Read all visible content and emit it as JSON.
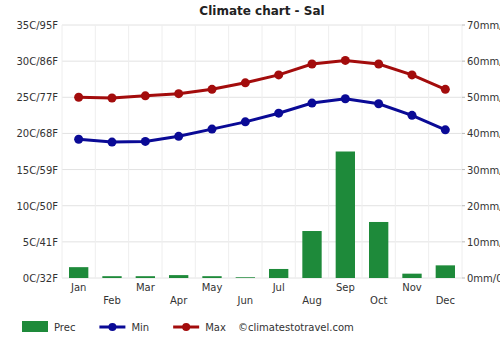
{
  "chart_data": {
    "type": "bar",
    "title": "Climate chart - Sal",
    "categories": [
      "Jan",
      "Feb",
      "Mar",
      "Apr",
      "May",
      "Jun",
      "Jul",
      "Aug",
      "Sep",
      "Oct",
      "Nov",
      "Dec"
    ],
    "series": [
      {
        "name": "Prec",
        "type": "bar",
        "axis": "y2",
        "color": "#1e8a3a",
        "values": [
          3,
          0.5,
          0.5,
          0.8,
          0.5,
          0.2,
          2.5,
          13,
          35,
          15.5,
          1.2,
          3.5
        ]
      },
      {
        "name": "Min",
        "type": "line",
        "color": "#0a0a96",
        "marker": "circle",
        "values": [
          19.2,
          18.8,
          18.9,
          19.6,
          20.6,
          21.6,
          22.8,
          24.2,
          24.8,
          24.1,
          22.5,
          20.5
        ]
      },
      {
        "name": "Max",
        "type": "line",
        "color": "#a30c0c",
        "marker": "circle",
        "values": [
          25,
          24.9,
          25.2,
          25.5,
          26.1,
          27,
          28.1,
          29.6,
          30.1,
          29.6,
          28.1,
          26.1
        ]
      }
    ],
    "ylim": [
      0,
      35
    ],
    "yticks": [
      {
        "value": 0,
        "label": "0C/32F"
      },
      {
        "value": 5,
        "label": "5C/41F"
      },
      {
        "value": 10,
        "label": "10C/50F"
      },
      {
        "value": 15,
        "label": "15C/59F"
      },
      {
        "value": 20,
        "label": "20C/68F"
      },
      {
        "value": 25,
        "label": "25C/77F"
      },
      {
        "value": 30,
        "label": "30C/86F"
      },
      {
        "value": 35,
        "label": "35C/95F"
      }
    ],
    "y2lim": [
      0,
      70
    ],
    "y2ticks": [
      {
        "value": 0,
        "label": "0mm/0in"
      },
      {
        "value": 10,
        "label": "10mm/0.4in"
      },
      {
        "value": 20,
        "label": "20mm/0.8in"
      },
      {
        "value": 30,
        "label": "30mm/1.2in"
      },
      {
        "value": 40,
        "label": "40mm/1.6in"
      },
      {
        "value": 50,
        "label": "50mm/2in"
      },
      {
        "value": 60,
        "label": "60mm/2.4in"
      },
      {
        "value": 70,
        "label": "70mm/2.8in"
      }
    ],
    "annotations": [
      "©climatestotravel.com"
    ],
    "grid": true,
    "legend": "bottom"
  }
}
